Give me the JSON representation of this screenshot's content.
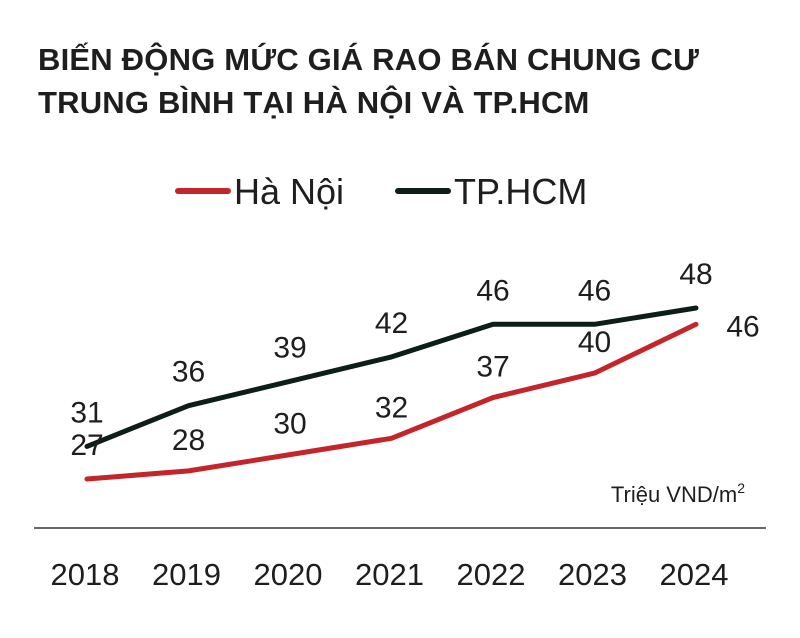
{
  "title": "BIẾN ĐỘNG MỨC GIÁ RAO BÁN CHUNG CƯ TRUNG BÌNH TẠI HÀ NỘI VÀ TP.HCM",
  "unit": {
    "text": "Triệu VND/m",
    "superscript": "2"
  },
  "chart_data": {
    "type": "line",
    "title": "BIẾN ĐỘNG MỨC GIÁ RAO BÁN CHUNG CƯ TRUNG BÌNH TẠI HÀ NỘI VÀ TP.HCM",
    "categories": [
      "2018",
      "2019",
      "2020",
      "2021",
      "2022",
      "2023",
      "2024"
    ],
    "series": [
      {
        "name": "Hà Nội",
        "color": "#c4252a",
        "values": [
          27,
          28,
          30,
          32,
          37,
          40,
          46
        ]
      },
      {
        "name": "TP.HCM",
        "color": "#0c1d1a",
        "values": [
          31,
          36,
          39,
          42,
          46,
          46,
          48
        ]
      }
    ],
    "xlabel": "",
    "ylabel": "Triệu VND/m2",
    "legend": "top-center",
    "grid": false
  }
}
